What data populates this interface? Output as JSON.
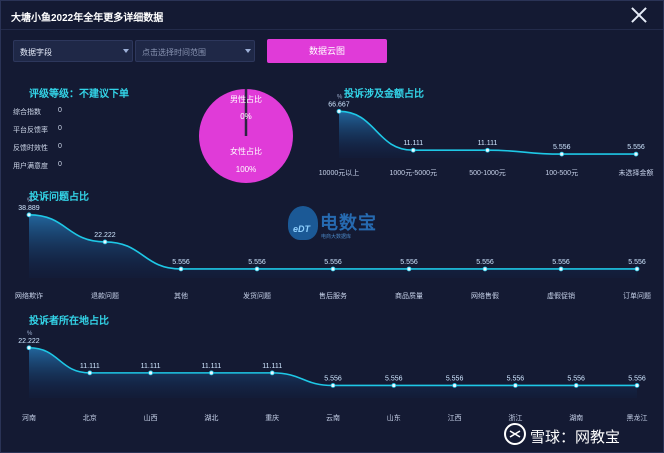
{
  "window": {
    "title": "大塘小鱼2022年全年更多详细数据"
  },
  "toolbar": {
    "field_select": "数据字段",
    "time_select_placeholder": "点击选择时间范围",
    "cloud_button": "数据云图"
  },
  "rating": {
    "title": "评级等级：不建议下单",
    "metrics": [
      {
        "label": "综合指数",
        "value": "0"
      },
      {
        "label": "平台反馈率",
        "value": "0"
      },
      {
        "label": "反馈时效性",
        "value": "0"
      },
      {
        "label": "用户满意度",
        "value": "0"
      }
    ]
  },
  "colors": {
    "accent_cyan": "#33d4e8",
    "button_magenta": "#e03bd8",
    "pie_fill": "#e03bd8",
    "line": "#1ec8e6"
  },
  "logo": {
    "brand": "电数宝",
    "sub": "电商大数据库",
    "mark": "eDT"
  },
  "watermark": {
    "text": "雪球：网教宝"
  },
  "chart_data": [
    {
      "type": "pie",
      "labels": [
        "男性占比",
        "女性占比"
      ],
      "values": [
        0,
        100
      ],
      "value_labels": [
        "0%",
        "100%"
      ]
    },
    {
      "type": "area",
      "title": "投诉涉及金额占比",
      "unit": "%",
      "categories": [
        "10000元以上",
        "1000元-5000元",
        "500-1000元",
        "100-500元",
        "未选择金额"
      ],
      "values": [
        66.667,
        11.111,
        11.111,
        5.556,
        5.556
      ],
      "value_labels": [
        "66.667",
        "11.111",
        "11.111",
        "5.556",
        "5.556"
      ],
      "ylim": [
        0,
        70
      ]
    },
    {
      "type": "area",
      "title": "投诉问题占比",
      "unit": "%",
      "categories": [
        "网络欺诈",
        "退款问题",
        "其他",
        "发货问题",
        "售后服务",
        "商品质量",
        "网络售假",
        "虚假促销",
        "订单问题"
      ],
      "values": [
        38.889,
        22.222,
        5.556,
        5.556,
        5.556,
        5.556,
        5.556,
        5.556,
        5.556
      ],
      "value_labels": [
        "38.889",
        "22.222",
        "5.556",
        "5.556",
        "5.556",
        "5.556",
        "5.556",
        "5.556",
        "5.556"
      ],
      "ylim": [
        0,
        40
      ]
    },
    {
      "type": "area",
      "title": "投诉者所在地占比",
      "unit": "%",
      "categories": [
        "河南",
        "北京",
        "山西",
        "湖北",
        "重庆",
        "云南",
        "山东",
        "江西",
        "浙江",
        "湖南",
        "黑龙江"
      ],
      "values": [
        22.222,
        11.111,
        11.111,
        11.111,
        11.111,
        5.556,
        5.556,
        5.556,
        5.556,
        5.556,
        5.556
      ],
      "value_labels": [
        "22.222",
        "11.111",
        "11.111",
        "11.111",
        "11.111",
        "5.556",
        "5.556",
        "5.556",
        "5.556",
        "5.556",
        "5.556"
      ],
      "ylim": [
        0,
        23
      ]
    }
  ]
}
